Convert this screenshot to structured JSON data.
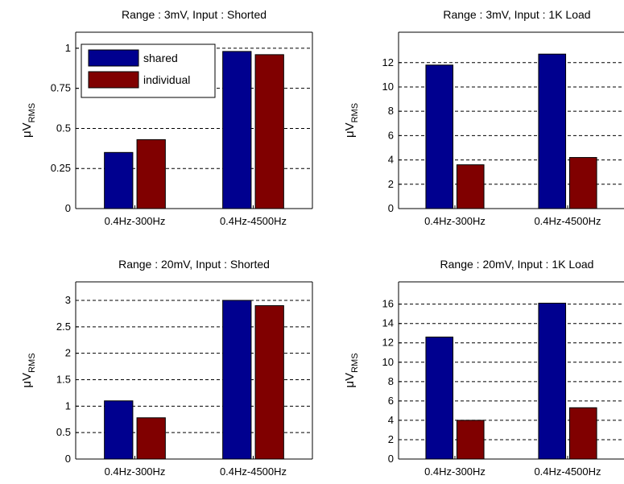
{
  "chart_data": [
    {
      "type": "bar",
      "title": "Range : 3mV, Input : Shorted",
      "xlabel": "",
      "ylabel": "μV",
      "ylabel_sub": "RMS",
      "categories": [
        "0.4Hz-300Hz",
        "0.4Hz-4500Hz"
      ],
      "series": [
        {
          "name": "shared",
          "values": [
            0.35,
            0.98
          ]
        },
        {
          "name": "individual",
          "values": [
            0.43,
            0.96
          ]
        }
      ],
      "ylim": [
        0,
        1.1
      ],
      "yticks": [
        0,
        0.25,
        0.5,
        0.75,
        1
      ],
      "ytick_labels": [
        "0",
        "0.25",
        "0.5",
        "0.75",
        "1"
      ],
      "grid": "horizontal dashed",
      "legend": "top-left"
    },
    {
      "type": "bar",
      "title": "Range : 3mV, Input : 1K Load",
      "xlabel": "",
      "ylabel": "μV",
      "ylabel_sub": "RMS",
      "categories": [
        "0.4Hz-300Hz",
        "0.4Hz-4500Hz"
      ],
      "series": [
        {
          "name": "shared",
          "values": [
            11.8,
            12.7
          ]
        },
        {
          "name": "individual",
          "values": [
            3.6,
            4.2
          ]
        }
      ],
      "ylim": [
        0,
        14.5
      ],
      "yticks": [
        0,
        2,
        4,
        6,
        8,
        10,
        12
      ],
      "ytick_labels": [
        "0",
        "2",
        "4",
        "6",
        "8",
        "10",
        "12"
      ],
      "grid": "horizontal dashed"
    },
    {
      "type": "bar",
      "title": "Range : 20mV, Input : Shorted",
      "xlabel": "",
      "ylabel": "μV",
      "ylabel_sub": "RMS",
      "categories": [
        "0.4Hz-300Hz",
        "0.4Hz-4500Hz"
      ],
      "series": [
        {
          "name": "shared",
          "values": [
            1.1,
            3.0
          ]
        },
        {
          "name": "individual",
          "values": [
            0.78,
            2.9
          ]
        }
      ],
      "ylim": [
        0,
        3.35
      ],
      "yticks": [
        0,
        0.5,
        1,
        1.5,
        2,
        2.5,
        3
      ],
      "ytick_labels": [
        "0",
        "0.5",
        "1",
        "1.5",
        "2",
        "2.5",
        "3"
      ],
      "grid": "horizontal dashed"
    },
    {
      "type": "bar",
      "title": "Range : 20mV, Input : 1K Load",
      "xlabel": "",
      "ylabel": "μV",
      "ylabel_sub": "RMS",
      "categories": [
        "0.4Hz-300Hz",
        "0.4Hz-4500Hz"
      ],
      "series": [
        {
          "name": "shared",
          "values": [
            12.6,
            16.1
          ]
        },
        {
          "name": "individual",
          "values": [
            4.0,
            5.3
          ]
        }
      ],
      "ylim": [
        0,
        18.3
      ],
      "yticks": [
        0,
        2,
        4,
        6,
        8,
        10,
        12,
        14,
        16
      ],
      "ytick_labels": [
        "0",
        "2",
        "4",
        "6",
        "8",
        "10",
        "12",
        "14",
        "16"
      ],
      "grid": "horizontal dashed"
    }
  ],
  "colors": {
    "shared": "#00008f",
    "individual": "#800000",
    "axes": "#000000",
    "grid": "#000000"
  }
}
